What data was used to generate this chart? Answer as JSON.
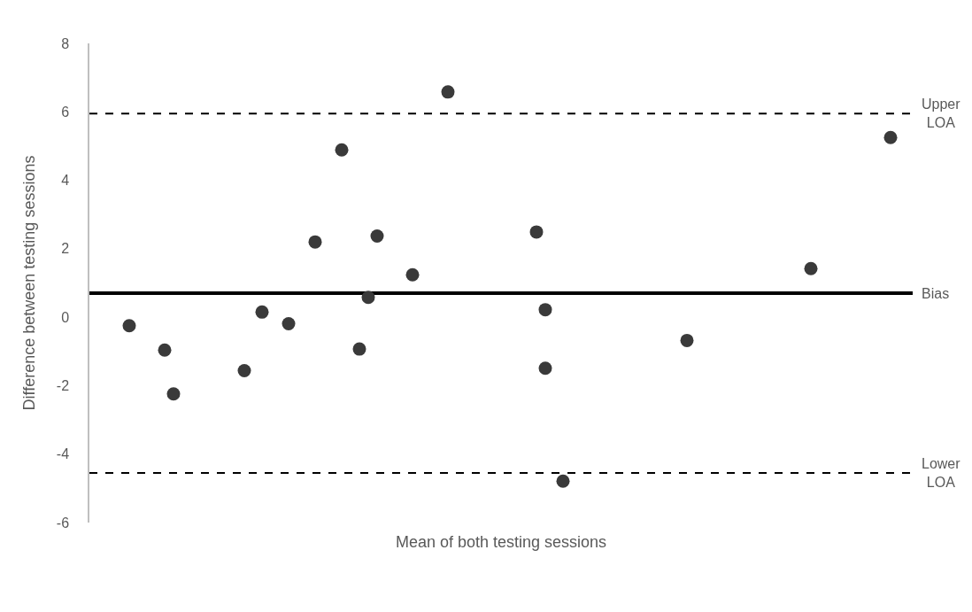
{
  "chart_data": {
    "type": "scatter",
    "xlabel": "Mean of both testing sessions",
    "ylabel": "Difference between testing sessions",
    "categories": [
      null,
      null,
      null,
      null,
      null,
      null,
      null,
      null,
      null,
      null,
      null,
      null,
      null,
      null,
      null,
      null,
      null,
      null,
      null,
      null,
      null,
      null,
      null,
      null,
      null,
      null,
      null,
      null,
      null,
      null,
      null,
      null,
      null,
      null,
      null,
      null,
      null,
      null,
      null,
      null,
      null,
      null,
      null,
      null,
      null,
      null,
      null,
      null,
      null,
      null,
      null,
      null,
      null,
      null,
      null,
      null,
      null,
      null,
      null,
      null,
      null,
      null,
      null,
      null,
      null,
      null,
      null,
      null,
      null,
      null,
      null,
      null,
      null,
      null,
      null,
      null,
      null,
      null,
      null,
      null,
      null,
      null,
      null,
      null,
      null,
      null,
      null,
      null,
      null,
      null,
      null,
      null,
      null
    ],
    "series": [
      {
        "color": "#3a3a3a",
        "values": [
          null,
          null,
          null,
          null,
          -0.25,
          null,
          null,
          null,
          -0.96,
          -2.24,
          null,
          null,
          null,
          null,
          null,
          null,
          null,
          -1.56,
          null,
          0.15,
          null,
          null,
          -0.19,
          null,
          null,
          2.2,
          null,
          null,
          4.89,
          null,
          -0.93,
          0.58,
          2.37,
          null,
          null,
          null,
          1.24,
          null,
          null,
          null,
          6.58,
          null,
          null,
          null,
          null,
          null,
          null,
          null,
          null,
          null,
          2.49,
          0.22,
          null,
          -4.79,
          null,
          null,
          null,
          null,
          null,
          null,
          null,
          null,
          null,
          null,
          null,
          null,
          null,
          -0.68,
          null,
          null,
          null,
          null,
          null,
          null,
          null,
          null,
          null,
          null,
          null,
          null,
          null,
          1.42,
          null,
          null,
          null,
          null,
          null,
          null,
          null,
          null,
          5.25,
          null,
          null
        ]
      },
      {
        "color": "#3a3a3a",
        "values": [
          null,
          null,
          null,
          null,
          null,
          null,
          null,
          null,
          null,
          null,
          null,
          null,
          null,
          null,
          null,
          null,
          null,
          null,
          null,
          null,
          null,
          null,
          null,
          null,
          null,
          null,
          null,
          null,
          null,
          null,
          null,
          null,
          null,
          null,
          null,
          null,
          null,
          null,
          null,
          null,
          null,
          null,
          null,
          null,
          null,
          null,
          null,
          null,
          null,
          null,
          null,
          -1.49,
          null,
          null,
          null,
          null,
          null,
          null,
          null,
          null,
          null,
          null,
          null,
          null,
          null,
          null,
          null,
          null,
          null,
          null,
          null,
          null,
          null,
          null,
          null,
          null,
          null,
          null,
          null,
          null,
          null,
          null,
          null,
          null,
          null,
          null,
          null,
          null,
          null,
          null,
          null,
          null,
          null
        ]
      }
    ],
    "ylim": [
      -6,
      8
    ],
    "yticks": [
      -6,
      -4,
      -2,
      0,
      2,
      4,
      6,
      8
    ],
    "tick_labels": "y",
    "marker": "circle",
    "ref_lines": [
      {
        "axis": "y",
        "value": 5.95,
        "label": "Upper\nLOA",
        "color": "#000000",
        "line_style": "dashed"
      },
      {
        "axis": "y",
        "value": 0.7,
        "label": "Bias",
        "color": "#000000",
        "line_style": "solid"
      },
      {
        "axis": "y",
        "value": -4.55,
        "label": "Lower\nLOA",
        "color": "#000000",
        "line_style": "dashed"
      }
    ]
  }
}
